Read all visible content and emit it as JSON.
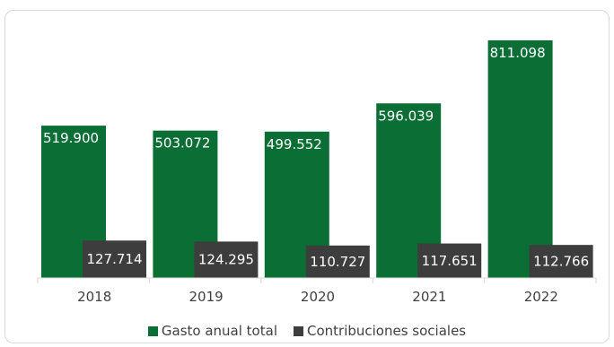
{
  "chart_data": {
    "type": "bar",
    "categories": [
      "2018",
      "2019",
      "2020",
      "2021",
      "2022"
    ],
    "series": [
      {
        "name": "Gasto anual total",
        "values": [
          519900,
          503072,
          499552,
          596039,
          811098
        ],
        "labels": [
          "519.900",
          "503.072",
          "499.552",
          "596.039",
          "811.098"
        ],
        "color": "#0b6e35"
      },
      {
        "name": "Contribuciones sociales",
        "values": [
          127714,
          124295,
          110727,
          117651,
          112766
        ],
        "labels": [
          "127.714",
          "124.295",
          "110.727",
          "117.651",
          "112.766"
        ],
        "color": "#3d3d3d"
      }
    ],
    "ylim": [
      0,
      811098
    ],
    "grid": false,
    "legend": "bottom",
    "title": "",
    "xlabel": "",
    "ylabel": ""
  }
}
